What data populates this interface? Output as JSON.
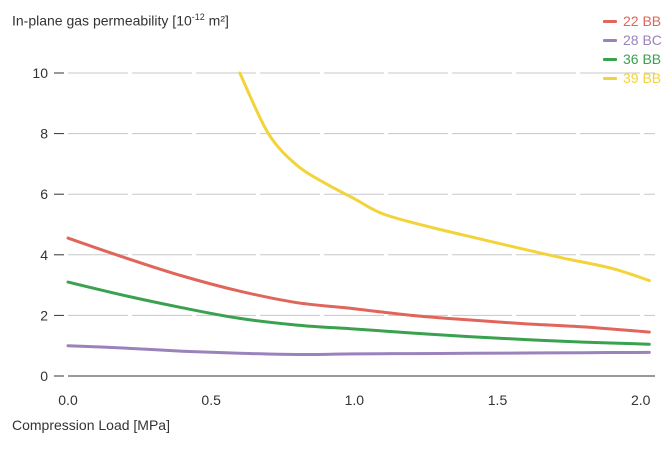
{
  "chart_data": {
    "type": "line",
    "title_prefix": "In-plane gas permeability [10",
    "title_exp": "-12",
    "title_suffix": " m²]",
    "xlabel": "Compression Load [MPa]",
    "xlim": [
      0.0,
      2.05
    ],
    "ylim": [
      0,
      10
    ],
    "xticks": [
      "0.0",
      "0.5",
      "1.0",
      "1.5",
      "2.0"
    ],
    "xtick_values": [
      0.0,
      0.5,
      1.0,
      1.5,
      2.0
    ],
    "yticks": [
      "0",
      "2",
      "4",
      "6",
      "8",
      "10"
    ],
    "ytick_values": [
      0,
      2,
      4,
      6,
      8,
      10
    ],
    "grid": "horizontal, dashed",
    "legend_position": "top-right",
    "series": [
      {
        "name": "22 BB",
        "color": "#e0655a",
        "points": [
          [
            0.0,
            4.55
          ],
          [
            0.2,
            3.9
          ],
          [
            0.4,
            3.3
          ],
          [
            0.6,
            2.8
          ],
          [
            0.8,
            2.42
          ],
          [
            1.0,
            2.22
          ],
          [
            1.2,
            2.0
          ],
          [
            1.4,
            1.85
          ],
          [
            1.6,
            1.72
          ],
          [
            1.8,
            1.62
          ],
          [
            2.03,
            1.45
          ]
        ]
      },
      {
        "name": "28 BC",
        "color": "#9b82bd",
        "points": [
          [
            0.0,
            1.0
          ],
          [
            0.2,
            0.92
          ],
          [
            0.4,
            0.82
          ],
          [
            0.6,
            0.75
          ],
          [
            0.8,
            0.71
          ],
          [
            1.0,
            0.73
          ],
          [
            1.2,
            0.74
          ],
          [
            1.4,
            0.75
          ],
          [
            1.6,
            0.76
          ],
          [
            1.8,
            0.77
          ],
          [
            2.03,
            0.78
          ]
        ]
      },
      {
        "name": "36 BB",
        "color": "#3aa14f",
        "points": [
          [
            0.0,
            3.1
          ],
          [
            0.2,
            2.65
          ],
          [
            0.4,
            2.25
          ],
          [
            0.6,
            1.9
          ],
          [
            0.8,
            1.68
          ],
          [
            1.0,
            1.55
          ],
          [
            1.2,
            1.42
          ],
          [
            1.4,
            1.3
          ],
          [
            1.6,
            1.2
          ],
          [
            1.8,
            1.12
          ],
          [
            2.03,
            1.05
          ]
        ]
      },
      {
        "name": "39 BB",
        "color": "#f2d43a",
        "points": [
          [
            0.6,
            10.0
          ],
          [
            0.7,
            8.0
          ],
          [
            0.8,
            6.95
          ],
          [
            0.9,
            6.35
          ],
          [
            1.0,
            5.85
          ],
          [
            1.1,
            5.35
          ],
          [
            1.25,
            4.95
          ],
          [
            1.45,
            4.5
          ],
          [
            1.7,
            3.95
          ],
          [
            1.9,
            3.55
          ],
          [
            2.03,
            3.15
          ]
        ]
      }
    ]
  }
}
